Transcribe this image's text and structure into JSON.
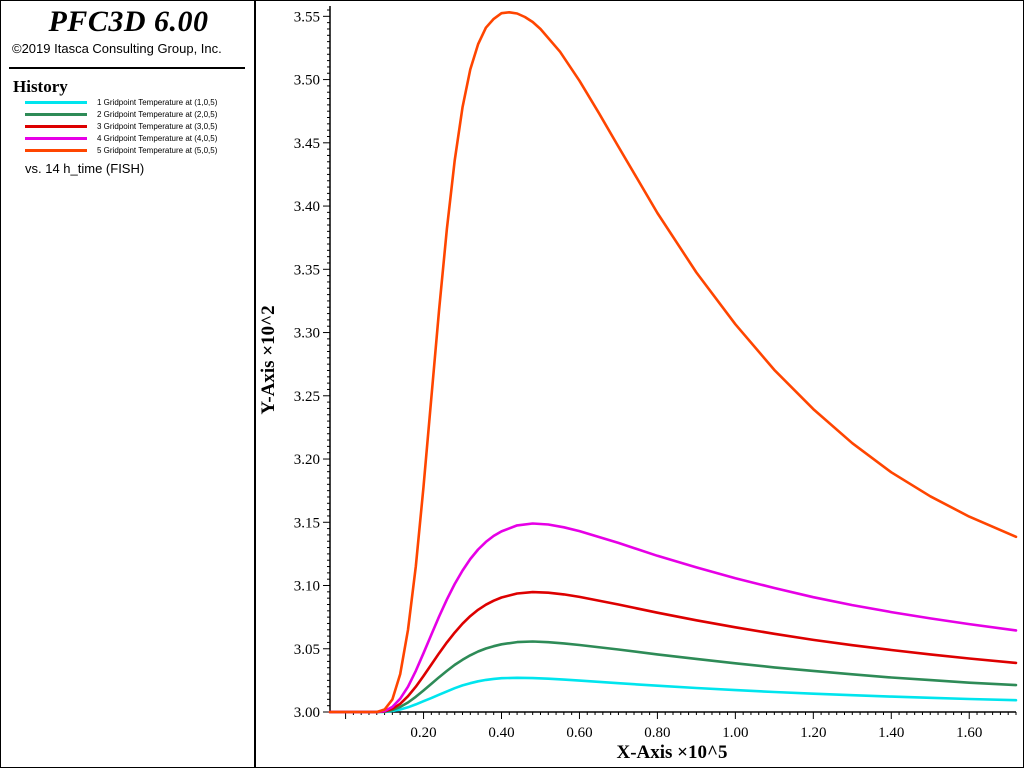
{
  "app": {
    "title": "PFC3D 6.00",
    "copyright": "©2019 Itasca Consulting Group, Inc."
  },
  "legend": {
    "heading": "History",
    "vs_label": "vs. 14 h_time (FISH)",
    "items": [
      {
        "label": "1 Gridpoint Temperature at (1,0,5)",
        "color": "#00e5ee"
      },
      {
        "label": "2 Gridpoint Temperature at (2,0,5)",
        "color": "#2e8b57"
      },
      {
        "label": "3 Gridpoint Temperature at (3,0,5)",
        "color": "#dd0000"
      },
      {
        "label": "4 Gridpoint Temperature at (4,0,5)",
        "color": "#e600e6"
      },
      {
        "label": "5 Gridpoint Temperature at (5,0,5)",
        "color": "#ff4500"
      }
    ]
  },
  "chart_data": {
    "type": "line",
    "title": "",
    "xlabel": "X-Axis ×10^5",
    "ylabel": "Y-Axis ×10^2",
    "xlim": [
      -0.04,
      1.72
    ],
    "ylim": [
      3.0,
      3.555
    ],
    "x_ticks": [
      "0.20",
      "0.40",
      "0.60",
      "0.80",
      "1.00",
      "1.20",
      "1.40",
      "1.60"
    ],
    "y_ticks": [
      "3.00",
      "3.05",
      "3.10",
      "3.15",
      "3.20",
      "3.25",
      "3.30",
      "3.35",
      "3.40",
      "3.45",
      "3.50",
      "3.55"
    ],
    "grid": false,
    "legend_position": "left panel",
    "series": [
      {
        "name": "1 Gridpoint Temperature at (1,0,5)",
        "color": "#00e5ee",
        "x": [
          -0.04,
          0.0,
          0.04,
          0.08,
          0.1,
          0.12,
          0.14,
          0.16,
          0.18,
          0.2,
          0.22,
          0.24,
          0.26,
          0.28,
          0.3,
          0.32,
          0.34,
          0.36,
          0.38,
          0.4,
          0.44,
          0.48,
          0.52,
          0.56,
          0.6,
          0.7,
          0.8,
          0.9,
          1.0,
          1.1,
          1.2,
          1.3,
          1.4,
          1.5,
          1.6,
          1.72
        ],
        "y": [
          3.0,
          3.0,
          3.0,
          3.0,
          3.0001,
          3.0008,
          3.002,
          3.0037,
          3.006,
          3.0085,
          3.011,
          3.0137,
          3.0163,
          3.0188,
          3.021,
          3.0228,
          3.0243,
          3.0254,
          3.0262,
          3.0267,
          3.027,
          3.0268,
          3.0263,
          3.0256,
          3.0248,
          3.0228,
          3.0208,
          3.019,
          3.0173,
          3.0158,
          3.0145,
          3.0133,
          3.0122,
          3.0112,
          3.0103,
          3.0093
        ]
      },
      {
        "name": "2 Gridpoint Temperature at (2,0,5)",
        "color": "#2e8b57",
        "x": [
          -0.04,
          0.0,
          0.04,
          0.08,
          0.1,
          0.12,
          0.14,
          0.16,
          0.18,
          0.2,
          0.22,
          0.24,
          0.26,
          0.28,
          0.3,
          0.32,
          0.34,
          0.36,
          0.38,
          0.4,
          0.44,
          0.48,
          0.52,
          0.56,
          0.6,
          0.7,
          0.8,
          0.9,
          1.0,
          1.1,
          1.2,
          1.3,
          1.4,
          1.5,
          1.6,
          1.72
        ],
        "y": [
          3.0,
          3.0,
          3.0,
          3.0,
          3.0003,
          3.0015,
          3.004,
          3.0075,
          3.012,
          3.017,
          3.0222,
          3.0275,
          3.0325,
          3.0372,
          3.0413,
          3.0448,
          3.0478,
          3.0502,
          3.052,
          3.0535,
          3.0553,
          3.0557,
          3.0552,
          3.0542,
          3.053,
          3.0494,
          3.0455,
          3.042,
          3.0385,
          3.0353,
          3.0325,
          3.0298,
          3.0273,
          3.0252,
          3.0232,
          3.0213
        ]
      },
      {
        "name": "3 Gridpoint Temperature at (3,0,5)",
        "color": "#dd0000",
        "x": [
          -0.04,
          0.0,
          0.04,
          0.08,
          0.1,
          0.12,
          0.14,
          0.16,
          0.18,
          0.2,
          0.22,
          0.24,
          0.26,
          0.28,
          0.3,
          0.32,
          0.34,
          0.36,
          0.38,
          0.4,
          0.44,
          0.48,
          0.52,
          0.56,
          0.6,
          0.7,
          0.8,
          0.9,
          1.0,
          1.1,
          1.2,
          1.3,
          1.4,
          1.5,
          1.6,
          1.72
        ],
        "y": [
          3.0,
          3.0,
          3.0,
          3.0,
          3.0005,
          3.0025,
          3.0065,
          3.0125,
          3.02,
          3.0285,
          3.0375,
          3.0465,
          3.055,
          3.0628,
          3.0698,
          3.0758,
          3.0808,
          3.0848,
          3.088,
          3.0905,
          3.0937,
          3.0948,
          3.0943,
          3.093,
          3.091,
          3.085,
          3.0785,
          3.0725,
          3.067,
          3.0618,
          3.057,
          3.0528,
          3.049,
          3.0455,
          3.0423,
          3.0388
        ]
      },
      {
        "name": "4 Gridpoint Temperature at (4,0,5)",
        "color": "#e600e6",
        "x": [
          -0.04,
          0.0,
          0.04,
          0.08,
          0.1,
          0.12,
          0.14,
          0.16,
          0.18,
          0.2,
          0.22,
          0.24,
          0.26,
          0.28,
          0.3,
          0.32,
          0.34,
          0.36,
          0.38,
          0.4,
          0.44,
          0.48,
          0.52,
          0.56,
          0.6,
          0.7,
          0.8,
          0.9,
          1.0,
          1.1,
          1.2,
          1.3,
          1.4,
          1.5,
          1.6,
          1.72
        ],
        "y": [
          3.0,
          3.0,
          3.0,
          3.0,
          3.0008,
          3.004,
          3.0105,
          3.02,
          3.0325,
          3.0465,
          3.061,
          3.0755,
          3.089,
          3.1012,
          3.1118,
          3.121,
          3.1285,
          3.1345,
          3.1392,
          3.1428,
          3.1475,
          3.149,
          3.1482,
          3.146,
          3.143,
          3.1337,
          3.1235,
          3.1143,
          3.1058,
          3.098,
          3.0908,
          3.0845,
          3.079,
          3.074,
          3.0695,
          3.0645
        ]
      },
      {
        "name": "5 Gridpoint Temperature at (5,0,5)",
        "color": "#ff4500",
        "x": [
          -0.04,
          0.0,
          0.04,
          0.08,
          0.1,
          0.12,
          0.14,
          0.16,
          0.18,
          0.2,
          0.22,
          0.24,
          0.26,
          0.28,
          0.3,
          0.32,
          0.34,
          0.36,
          0.38,
          0.4,
          0.42,
          0.44,
          0.46,
          0.48,
          0.5,
          0.55,
          0.6,
          0.65,
          0.7,
          0.8,
          0.9,
          1.0,
          1.1,
          1.2,
          1.3,
          1.4,
          1.5,
          1.6,
          1.72
        ],
        "y": [
          3.0,
          3.0,
          3.0,
          3.0,
          3.002,
          3.01,
          3.03,
          3.065,
          3.115,
          3.178,
          3.248,
          3.318,
          3.382,
          3.436,
          3.478,
          3.508,
          3.528,
          3.541,
          3.548,
          3.5525,
          3.5532,
          3.5522,
          3.5495,
          3.5455,
          3.54,
          3.522,
          3.499,
          3.4735,
          3.447,
          3.3945,
          3.3475,
          3.3065,
          3.2705,
          3.2395,
          3.2125,
          3.1895,
          3.1705,
          3.1545,
          3.1385
        ]
      }
    ]
  }
}
